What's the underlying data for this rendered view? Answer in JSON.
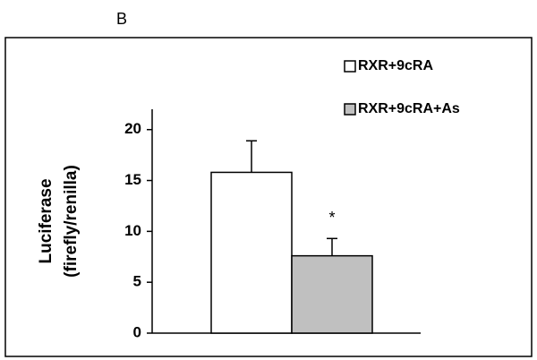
{
  "chart_data": {
    "type": "bar",
    "panel_label": "B",
    "ylabel": [
      "Luciferase",
      "(firefly/renilla)"
    ],
    "categories": [
      null
    ],
    "series": [
      {
        "name": "RXR+9cRA",
        "color": "#ffffff",
        "values": [
          15.8
        ],
        "errors": [
          3.1
        ]
      },
      {
        "name": "RXR+9cRA+As",
        "color": "#c0c0c0",
        "values": [
          7.6
        ],
        "errors": [
          1.7
        ]
      }
    ],
    "annotations": [
      {
        "text": "*",
        "series": 1
      }
    ],
    "ylim": [
      0,
      22
    ],
    "yticks": [
      0,
      5,
      10,
      15,
      20
    ],
    "grid": false,
    "legend": "upper right"
  }
}
